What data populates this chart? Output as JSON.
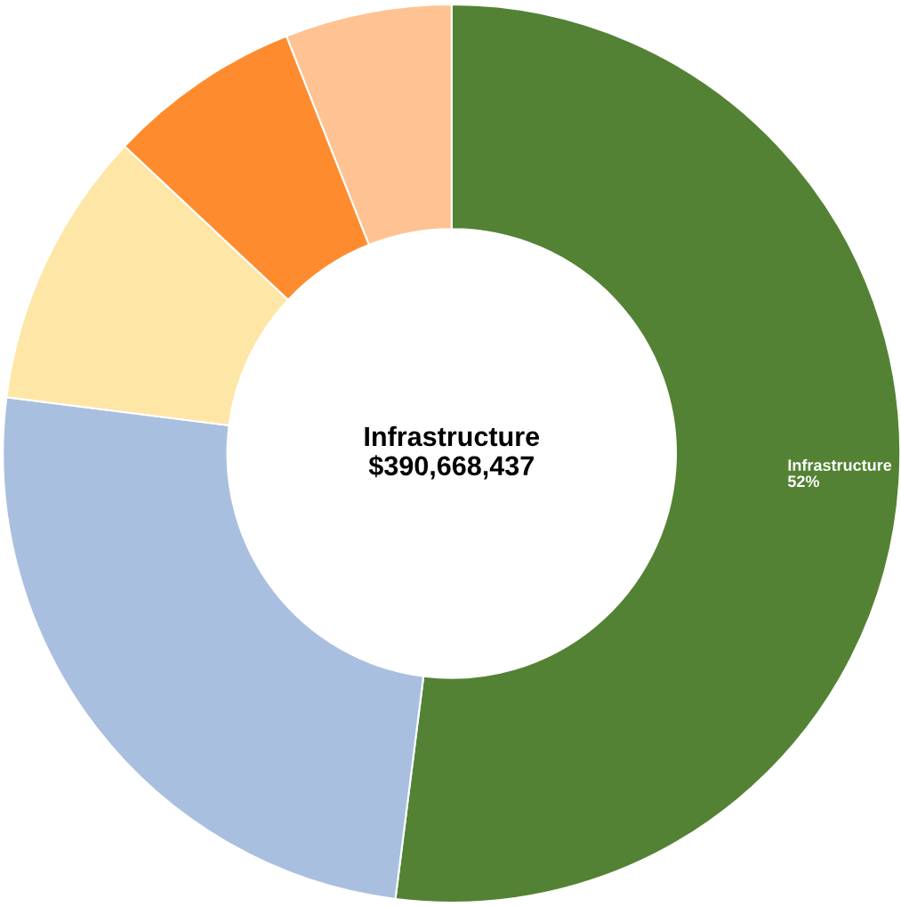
{
  "chart_data": {
    "type": "donut",
    "categories": [
      "Infrastructure",
      null,
      null,
      null,
      null
    ],
    "values": [
      52,
      25,
      10,
      7,
      6
    ],
    "colors": [
      "#548235",
      "#a9bfdf",
      "#fee6a6",
      "#fe8c2f",
      "#ffc292"
    ],
    "value_labels": [
      "52%",
      null,
      null,
      null,
      null
    ],
    "annotations": [
      "Infrastructure",
      "$390,668,437"
    ],
    "legend": false
  }
}
